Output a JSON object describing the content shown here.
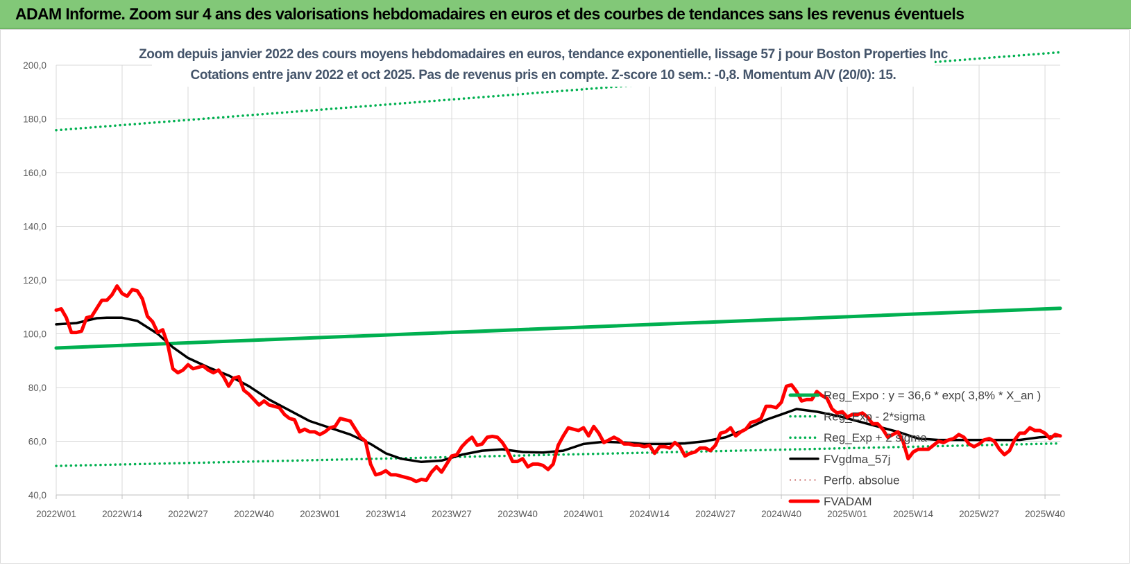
{
  "banner": {
    "title": "ADAM Informe. Zoom sur 4 ans des valorisations hebdomadaires en euros et des courbes de tendances sans les revenus éventuels",
    "color": "#82c878"
  },
  "chart_data": {
    "type": "line",
    "title_line1": "Zoom depuis janvier 2022 des cours moyens hebdomadaires en euros, tendance exponentielle, lissage 57 j pour Boston Properties Inc",
    "title_line2": "Cotations entre janv 2022 et oct 2025. Pas de revenus pris en compte. Z-score 10 sem.: -0,8. Momentum A/V (20/0): 15.",
    "ylim": [
      40,
      200
    ],
    "y_ticks": [
      "40,0",
      "60,0",
      "80,0",
      "100,0",
      "120,0",
      "140,0",
      "160,0",
      "180,0",
      "200,0"
    ],
    "y_tick_values": [
      40,
      60,
      80,
      100,
      120,
      140,
      160,
      180,
      200
    ],
    "x_range": [
      0,
      198
    ],
    "x_ticks": [
      "2022W01",
      "2022W14",
      "2022W27",
      "2022W40",
      "2023W01",
      "2023W14",
      "2023W27",
      "2023W40",
      "2024W01",
      "2024W14",
      "2024W27",
      "2024W40",
      "2025W01",
      "2025W14",
      "2025W27",
      "2025W40"
    ],
    "x_tick_positions": [
      0,
      13,
      26,
      39,
      52,
      65,
      78,
      91,
      104,
      117,
      130,
      143,
      156,
      169,
      182,
      195
    ],
    "grid": true,
    "series": [
      {
        "name": "Reg_Expo : y = 36,6 * exp( 3,8% * X_an )",
        "color": "#00b050",
        "style": "solid",
        "width": 5,
        "x": [
          0,
          198
        ],
        "values": [
          94.7,
          109.5
        ]
      },
      {
        "name": "Reg_Exp - 2*sigma",
        "color": "#00b050",
        "style": "dotted",
        "width": 3.5,
        "x": [
          0,
          198
        ],
        "values": [
          50.8,
          59.2
        ]
      },
      {
        "name": "Reg_Exp + 2 sigma",
        "color": "#00b050",
        "style": "dotted",
        "width": 3.5,
        "x": [
          0,
          198
        ],
        "values": [
          175.8,
          204.8
        ]
      },
      {
        "name": "FVgdma_57j",
        "color": "#000000",
        "style": "solid",
        "width": 3.5,
        "x": [
          0,
          4,
          8,
          10,
          13,
          16,
          20,
          23,
          26,
          30,
          34,
          38,
          42,
          46,
          50,
          54,
          58,
          62,
          65,
          68,
          72,
          76,
          80,
          84,
          88,
          92,
          96,
          100,
          104,
          108,
          112,
          116,
          120,
          124,
          128,
          132,
          136,
          140,
          143,
          146,
          150,
          154,
          158,
          162,
          166,
          170,
          174,
          178,
          182,
          186,
          190,
          194,
          198
        ],
        "values": [
          103.5,
          104.0,
          105.8,
          106.0,
          106.0,
          104.8,
          100.0,
          95.0,
          91.0,
          87.5,
          84.5,
          80.5,
          75.5,
          71.5,
          67.5,
          65.0,
          62.5,
          59.0,
          55.5,
          53.5,
          52.3,
          52.8,
          55.0,
          56.5,
          57.0,
          56.0,
          55.8,
          56.5,
          59.0,
          59.8,
          59.5,
          59.0,
          59.0,
          59.2,
          60.0,
          61.5,
          64.5,
          68.0,
          70.0,
          72.0,
          71.0,
          69.5,
          67.5,
          65.5,
          63.5,
          61.0,
          60.5,
          60.5,
          60.5,
          60.5,
          60.5,
          61.5,
          62.0
        ]
      },
      {
        "name": "Perfo. absolue",
        "color": "#c0504d",
        "style": "dotted",
        "width": 2,
        "x": [],
        "values": []
      },
      {
        "name": "FVADAM",
        "color": "#ff0000",
        "style": "solid",
        "width": 5,
        "x": [
          0,
          1,
          2,
          3,
          4,
          5,
          6,
          7,
          8,
          9,
          10,
          11,
          12,
          13,
          14,
          15,
          16,
          17,
          18,
          19,
          20,
          21,
          22,
          23,
          24,
          25,
          26,
          27,
          28,
          29,
          30,
          31,
          32,
          33,
          34,
          35,
          36,
          37,
          38,
          39,
          40,
          41,
          42,
          43,
          44,
          45,
          46,
          47,
          48,
          49,
          50,
          51,
          52,
          53,
          54,
          55,
          56,
          57,
          58,
          59,
          60,
          61,
          62,
          63,
          64,
          65,
          66,
          67,
          68,
          69,
          70,
          71,
          72,
          73,
          74,
          75,
          76,
          77,
          78,
          79,
          80,
          81,
          82,
          83,
          84,
          85,
          86,
          87,
          88,
          89,
          90,
          91,
          92,
          93,
          94,
          95,
          96,
          97,
          98,
          99,
          100,
          101,
          102,
          103,
          104,
          105,
          106,
          107,
          108,
          109,
          110,
          111,
          112,
          113,
          114,
          115,
          116,
          117,
          118,
          119,
          120,
          121,
          122,
          123,
          124,
          125,
          126,
          127,
          128,
          129,
          130,
          131,
          132,
          133,
          134,
          135,
          136,
          137,
          138,
          139,
          140,
          141,
          142,
          143,
          144,
          145,
          146,
          147,
          148,
          149,
          150,
          151,
          152,
          153,
          154,
          155,
          156,
          157,
          158,
          159,
          160,
          161,
          162,
          163,
          164,
          165,
          166,
          167,
          168,
          169,
          170,
          171,
          172,
          173,
          174,
          175,
          176,
          177,
          178,
          179,
          180,
          181,
          182,
          183,
          184,
          185,
          186,
          187,
          188,
          189,
          190,
          191,
          192,
          193,
          194,
          195,
          196,
          197,
          198
        ],
        "values": [
          108.8,
          109.3,
          106.0,
          100.5,
          100.5,
          101.0,
          106.0,
          106.5,
          109.5,
          112.5,
          112.5,
          114.5,
          117.8,
          115.0,
          114.0,
          116.5,
          116.0,
          113.0,
          106.5,
          104.5,
          100.5,
          101.5,
          96.0,
          87.0,
          85.5,
          86.5,
          88.5,
          87.0,
          87.5,
          88.0,
          86.5,
          85.5,
          86.5,
          84.0,
          80.5,
          83.5,
          84.0,
          79.0,
          77.5,
          75.5,
          73.5,
          75.0,
          73.5,
          73.0,
          72.5,
          70.0,
          68.5,
          68.0,
          63.5,
          64.5,
          63.5,
          63.5,
          62.5,
          63.5,
          65.0,
          65.5,
          68.5,
          68.0,
          67.5,
          64.5,
          61.5,
          60.0,
          51.5,
          47.5,
          48.0,
          49.0,
          47.5,
          47.5,
          47.0,
          46.5,
          46.0,
          45.0,
          45.8,
          45.5,
          48.5,
          50.5,
          48.5,
          51.5,
          54.5,
          55.0,
          58.0,
          60.0,
          61.5,
          58.5,
          59.0,
          61.5,
          61.8,
          61.5,
          59.5,
          56.5,
          52.5,
          52.5,
          53.5,
          50.5,
          51.5,
          51.5,
          51.0,
          49.5,
          51.5,
          58.5,
          62.0,
          65.0,
          64.5,
          64.0,
          65.0,
          62.0,
          65.5,
          63.0,
          59.5,
          60.5,
          61.5,
          60.5,
          59.0,
          59.0,
          58.5,
          58.5,
          58.0,
          58.5,
          55.5,
          58.0,
          58.0,
          57.5,
          59.5,
          58.0,
          54.5,
          55.5,
          56.0,
          57.5,
          57.5,
          56.5,
          58.5,
          63.0,
          63.5,
          65.0,
          62.0,
          63.5,
          64.5,
          67.0,
          67.5,
          68.5,
          73.0,
          73.0,
          72.5,
          74.5,
          80.5,
          81.0,
          78.5,
          75.0,
          75.5,
          75.5,
          78.5,
          77.0,
          76.0,
          72.0,
          70.5,
          71.0,
          69.0,
          70.0,
          70.0,
          70.5,
          69.0,
          66.5,
          66.5,
          64.5,
          61.5,
          62.5,
          63.5,
          60.0,
          53.5,
          56.0,
          57.0,
          57.0,
          57.0,
          58.5,
          60.0,
          59.5,
          60.5,
          61.0,
          62.5,
          61.5,
          59.0,
          58.0,
          59.0,
          60.5,
          61.0,
          60.0,
          57.0,
          55.0,
          56.5,
          60.5,
          63.0,
          63.0,
          65.0,
          64.0,
          64.0,
          63.0,
          61.0,
          62.5,
          62.0
        ]
      }
    ],
    "legend_position": "bottom-right"
  }
}
